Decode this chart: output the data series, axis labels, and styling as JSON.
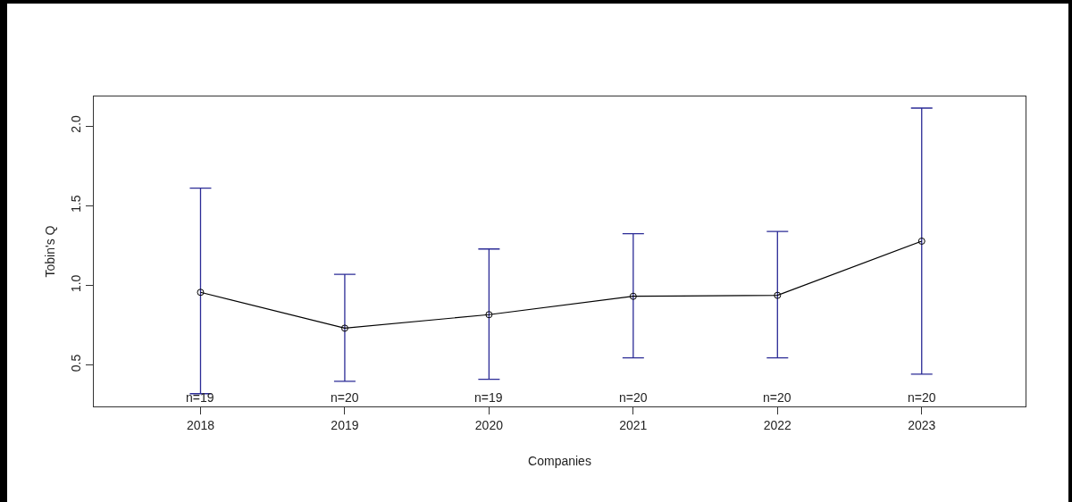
{
  "chart_data": {
    "type": "line",
    "xlabel": "Companies",
    "ylabel": "Tobin's Q",
    "categories": [
      "2018",
      "2019",
      "2020",
      "2021",
      "2022",
      "2023"
    ],
    "series": [
      {
        "color": "#000000",
        "values": [
          0.956,
          0.731,
          0.816,
          0.931,
          0.937,
          1.277
        ],
        "errors": [
          [
            0.32,
            1.61
          ],
          [
            0.398,
            1.069
          ],
          [
            0.41,
            1.228
          ],
          [
            0.545,
            1.324
          ],
          [
            0.545,
            1.338
          ],
          [
            0.443,
            2.112
          ]
        ]
      }
    ],
    "ylim": [
      0.24,
      2.185
    ],
    "yticks": [
      {
        "value": 0.5,
        "label": "0.5"
      },
      {
        "value": 1,
        "label": "1.0"
      },
      {
        "value": 1.5,
        "label": "1.5"
      },
      {
        "value": 2,
        "label": "2.0"
      }
    ],
    "annotations": [
      "n=19",
      "n=20",
      "n=19",
      "n=20",
      "n=20",
      "n=20"
    ],
    "marker": "circle",
    "line_style": "solid",
    "grid": false
  }
}
